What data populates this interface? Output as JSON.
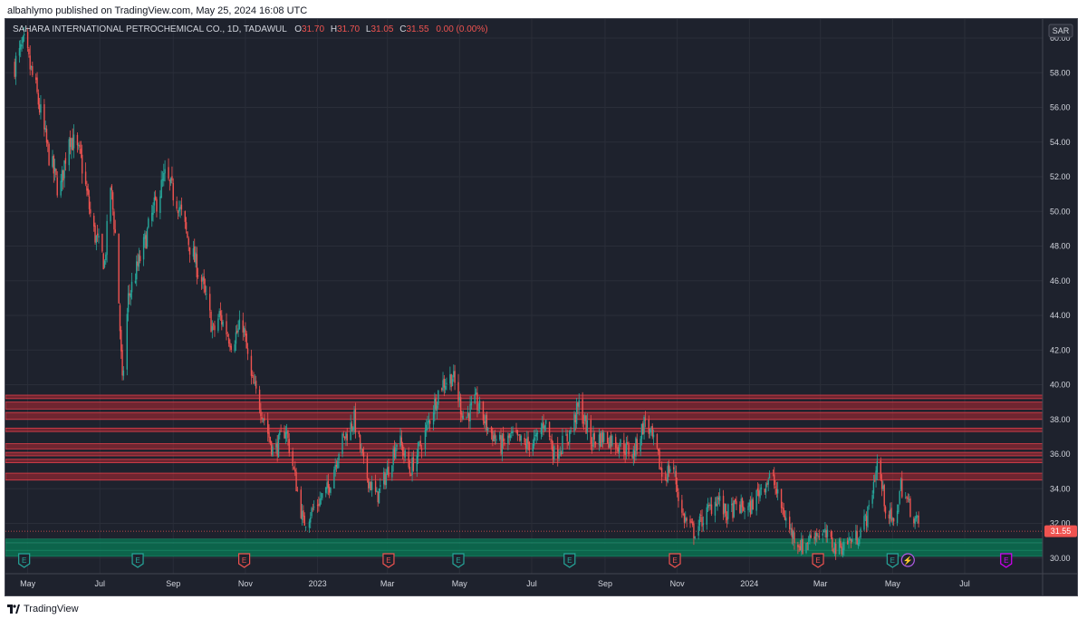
{
  "attribution": "albahlymo published on TradingView.com, May 25, 2024 16:08 UTC",
  "footer_brand": "TradingView",
  "legend": {
    "symbol": "SAHARA INTERNATIONAL PETROCHEMICAL CO., 1D, TADAWUL",
    "o_label": "O",
    "o": "31.70",
    "h_label": "H",
    "h": "31.70",
    "l_label": "L",
    "l": "31.05",
    "c_label": "C",
    "c": "31.55",
    "change": "0.00 (0.00%)"
  },
  "currency": "SAR",
  "last_price_label": "31.55",
  "colors": {
    "background": "#1e222d",
    "grid": "#2a2e39",
    "up": "#26a69a",
    "down": "#ef5350",
    "resistance": "#b22833",
    "support": "#0a6b4f",
    "axis_text": "#d1d4dc"
  },
  "chart_data": {
    "type": "candlestick",
    "ylim": [
      29.1,
      61.1
    ],
    "y_ticks": [
      "30.00",
      "32.00",
      "34.00",
      "36.00",
      "38.00",
      "40.00",
      "42.00",
      "44.00",
      "46.00",
      "48.00",
      "50.00",
      "52.00",
      "54.00",
      "56.00",
      "58.00",
      "60.00"
    ],
    "x_ticks": [
      "May",
      "Jul",
      "Sep",
      "Nov",
      "2023",
      "Mar",
      "May",
      "Jul",
      "Sep",
      "Nov",
      "2024",
      "Mar",
      "May",
      "Jul"
    ],
    "closing_path": [
      {
        "date": "2022-04-20",
        "price": 58.5
      },
      {
        "date": "2022-04-28",
        "price": 59.6
      },
      {
        "date": "2022-05-08",
        "price": 57.0
      },
      {
        "date": "2022-05-18",
        "price": 53.5
      },
      {
        "date": "2022-05-28",
        "price": 51.0
      },
      {
        "date": "2022-06-05",
        "price": 54.5
      },
      {
        "date": "2022-06-15",
        "price": 53.0
      },
      {
        "date": "2022-06-25",
        "price": 49.0
      },
      {
        "date": "2022-07-05",
        "price": 47.0
      },
      {
        "date": "2022-07-10",
        "price": 51.5
      },
      {
        "date": "2022-07-15",
        "price": 48.0
      },
      {
        "date": "2022-07-20",
        "price": 40.0
      },
      {
        "date": "2022-07-25",
        "price": 45.0
      },
      {
        "date": "2022-08-05",
        "price": 47.5
      },
      {
        "date": "2022-08-15",
        "price": 50.0
      },
      {
        "date": "2022-08-25",
        "price": 52.0
      },
      {
        "date": "2022-09-05",
        "price": 50.5
      },
      {
        "date": "2022-09-15",
        "price": 48.0
      },
      {
        "date": "2022-09-25",
        "price": 46.0
      },
      {
        "date": "2022-10-05",
        "price": 43.0
      },
      {
        "date": "2022-10-10",
        "price": 44.0
      },
      {
        "date": "2022-10-20",
        "price": 42.5
      },
      {
        "date": "2022-10-30",
        "price": 43.5
      },
      {
        "date": "2022-11-05",
        "price": 40.5
      },
      {
        "date": "2022-11-15",
        "price": 38.5
      },
      {
        "date": "2022-11-25",
        "price": 36.0
      },
      {
        "date": "2022-12-05",
        "price": 37.5
      },
      {
        "date": "2022-12-12",
        "price": 35.0
      },
      {
        "date": "2022-12-20",
        "price": 32.0
      },
      {
        "date": "2022-12-30",
        "price": 33.0
      },
      {
        "date": "2023-01-10",
        "price": 34.0
      },
      {
        "date": "2023-01-20",
        "price": 36.5
      },
      {
        "date": "2023-02-01",
        "price": 38.0
      },
      {
        "date": "2023-02-10",
        "price": 35.0
      },
      {
        "date": "2023-02-20",
        "price": 33.5
      },
      {
        "date": "2023-03-01",
        "price": 35.0
      },
      {
        "date": "2023-03-10",
        "price": 37.0
      },
      {
        "date": "2023-03-20",
        "price": 35.0
      },
      {
        "date": "2023-04-01",
        "price": 37.0
      },
      {
        "date": "2023-04-15",
        "price": 40.0
      },
      {
        "date": "2023-04-25",
        "price": 40.5
      },
      {
        "date": "2023-05-05",
        "price": 38.0
      },
      {
        "date": "2023-05-15",
        "price": 39.0
      },
      {
        "date": "2023-05-25",
        "price": 37.5
      },
      {
        "date": "2023-06-05",
        "price": 36.5
      },
      {
        "date": "2023-06-15",
        "price": 37.0
      },
      {
        "date": "2023-06-25",
        "price": 36.5
      },
      {
        "date": "2023-07-05",
        "price": 36.8
      },
      {
        "date": "2023-07-12",
        "price": 38.0
      },
      {
        "date": "2023-07-20",
        "price": 36.0
      },
      {
        "date": "2023-08-01",
        "price": 37.0
      },
      {
        "date": "2023-08-10",
        "price": 38.8
      },
      {
        "date": "2023-08-20",
        "price": 36.8
      },
      {
        "date": "2023-09-01",
        "price": 37.0
      },
      {
        "date": "2023-09-15",
        "price": 36.5
      },
      {
        "date": "2023-09-25",
        "price": 36.0
      },
      {
        "date": "2023-10-05",
        "price": 38.0
      },
      {
        "date": "2023-10-15",
        "price": 36.0
      },
      {
        "date": "2023-10-20",
        "price": 34.5
      },
      {
        "date": "2023-10-28",
        "price": 35.5
      },
      {
        "date": "2023-11-05",
        "price": 32.5
      },
      {
        "date": "2023-11-15",
        "price": 31.5
      },
      {
        "date": "2023-11-25",
        "price": 32.5
      },
      {
        "date": "2023-12-05",
        "price": 33.5
      },
      {
        "date": "2023-12-12",
        "price": 32.5
      },
      {
        "date": "2023-12-22",
        "price": 33.0
      },
      {
        "date": "2024-01-01",
        "price": 32.8
      },
      {
        "date": "2024-01-10",
        "price": 34.0
      },
      {
        "date": "2024-01-20",
        "price": 34.8
      },
      {
        "date": "2024-01-25",
        "price": 33.5
      },
      {
        "date": "2024-02-05",
        "price": 31.5
      },
      {
        "date": "2024-02-15",
        "price": 30.6
      },
      {
        "date": "2024-02-25",
        "price": 31.5
      },
      {
        "date": "2024-03-05",
        "price": 31.3
      },
      {
        "date": "2024-03-15",
        "price": 30.5
      },
      {
        "date": "2024-03-25",
        "price": 31.0
      },
      {
        "date": "2024-04-01",
        "price": 31.2
      },
      {
        "date": "2024-04-10",
        "price": 32.5
      },
      {
        "date": "2024-04-18",
        "price": 35.5
      },
      {
        "date": "2024-04-25",
        "price": 33.0
      },
      {
        "date": "2024-05-02",
        "price": 31.8
      },
      {
        "date": "2024-05-08",
        "price": 34.2
      },
      {
        "date": "2024-05-15",
        "price": 33.0
      },
      {
        "date": "2024-05-22",
        "price": 32.0
      },
      {
        "date": "2024-05-26",
        "price": 31.55
      }
    ],
    "resistance_zones": [
      [
        39.2,
        39.4
      ],
      [
        38.6,
        39.0
      ],
      [
        38.0,
        38.4
      ],
      [
        37.3,
        37.5
      ],
      [
        36.3,
        36.6
      ],
      [
        35.9,
        36.1
      ],
      [
        35.5,
        35.7
      ],
      [
        34.5,
        34.9
      ]
    ],
    "support_zones": [
      [
        30.1,
        30.45
      ],
      [
        30.45,
        30.85
      ],
      [
        30.9,
        31.1
      ]
    ],
    "last_price": 31.55,
    "events": [
      {
        "label": "E",
        "date": "2022-04-28",
        "kind": "earnings-up"
      },
      {
        "label": "E",
        "date": "2022-08-02",
        "kind": "earnings-up"
      },
      {
        "label": "E",
        "date": "2022-10-31",
        "kind": "earnings-down"
      },
      {
        "label": "E",
        "date": "2023-03-02",
        "kind": "earnings-down"
      },
      {
        "label": "E",
        "date": "2023-04-30",
        "kind": "earnings-up"
      },
      {
        "label": "E",
        "date": "2023-08-02",
        "kind": "earnings-up"
      },
      {
        "label": "E",
        "date": "2023-10-30",
        "kind": "earnings-down"
      },
      {
        "label": "E",
        "date": "2024-02-28",
        "kind": "earnings-down"
      },
      {
        "label": "E",
        "date": "2024-05-01",
        "kind": "earnings-up"
      },
      {
        "label": "⚡",
        "date": "2024-05-14",
        "kind": "split"
      },
      {
        "label": "E",
        "date": "2024-08-05",
        "kind": "earnings-future"
      }
    ]
  }
}
